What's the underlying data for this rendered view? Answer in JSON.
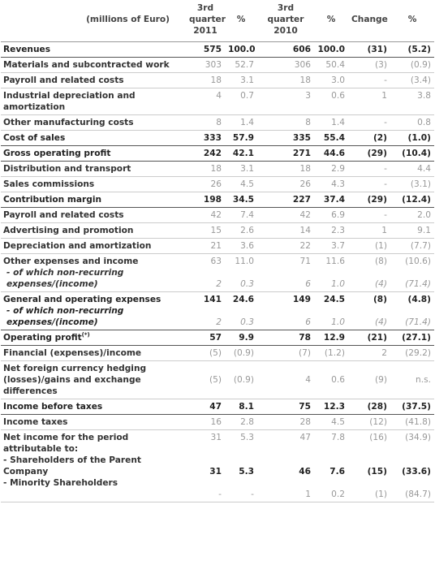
{
  "header": {
    "label": "(millions of Euro)",
    "col1": "3rd quarter 2011",
    "col1_line1": "3rd",
    "col1_line2": "quarter",
    "col1_line3": "2011",
    "col2": "%",
    "col3_line1": "3rd",
    "col3_line2": "quarter",
    "col3_line3": "2010",
    "col4": "%",
    "col5": "Change",
    "col6": "%"
  },
  "rows": [
    {
      "label": "Revenues",
      "v2011": "575",
      "p2011": "100.0",
      "v2010": "606",
      "p2010": "100.0",
      "change": "(31)",
      "change_pct": "(5.2)",
      "bold": true
    },
    {
      "label": "Materials and subcontracted work",
      "v2011": "303",
      "p2011": "52.7",
      "v2010": "306",
      "p2010": "50.4",
      "change": "(3)",
      "change_pct": "(0.9)",
      "bold": false
    },
    {
      "label": "Payroll and related costs",
      "v2011": "18",
      "p2011": "3.1",
      "v2010": "18",
      "p2010": "3.0",
      "change": "-",
      "change_pct": "(3.4)",
      "bold": false
    },
    {
      "label": "Industrial depreciation and amortization",
      "v2011": "4",
      "p2011": "0.7",
      "v2010": "3",
      "p2010": "0.6",
      "change": "1",
      "change_pct": "3.8",
      "bold": false
    },
    {
      "label": "Other manufacturing costs",
      "v2011": "8",
      "p2011": "1.4",
      "v2010": "8",
      "p2010": "1.4",
      "change": "-",
      "change_pct": "0.8",
      "bold": false
    },
    {
      "label": "Cost of sales",
      "v2011": "333",
      "p2011": "57.9",
      "v2010": "335",
      "p2010": "55.4",
      "change": "(2)",
      "change_pct": "(1.0)",
      "bold": true
    },
    {
      "label": "Gross operating profit",
      "v2011": "242",
      "p2011": "42.1",
      "v2010": "271",
      "p2010": "44.6",
      "change": "(29)",
      "change_pct": "(10.4)",
      "bold": true
    },
    {
      "label": "Distribution and transport",
      "v2011": "18",
      "p2011": "3.1",
      "v2010": "18",
      "p2010": "2.9",
      "change": "-",
      "change_pct": "4.4",
      "bold": false
    },
    {
      "label": "Sales commissions",
      "v2011": "26",
      "p2011": "4.5",
      "v2010": "26",
      "p2010": "4.3",
      "change": "-",
      "change_pct": "(3.1)",
      "bold": false
    },
    {
      "label": "Contribution margin",
      "v2011": "198",
      "p2011": "34.5",
      "v2010": "227",
      "p2010": "37.4",
      "change": "(29)",
      "change_pct": "(12.4)",
      "bold": true
    },
    {
      "label": "Payroll and related costs",
      "v2011": "42",
      "p2011": "7.4",
      "v2010": "42",
      "p2010": "6.9",
      "change": "-",
      "change_pct": "2.0",
      "bold": false
    },
    {
      "label": "Advertising and promotion",
      "v2011": "15",
      "p2011": "2.6",
      "v2010": "14",
      "p2010": "2.3",
      "change": "1",
      "change_pct": "9.1",
      "bold": false
    },
    {
      "label": "Depreciation and amortization",
      "v2011": "21",
      "p2011": "3.6",
      "v2010": "22",
      "p2010": "3.7",
      "change": "(1)",
      "change_pct": "(7.7)",
      "bold": false
    }
  ],
  "other_expenses": {
    "label": "Other expenses and income",
    "sub_label": "- of which non-recurring expenses/(income)",
    "v2011": "63",
    "p2011": "11.0",
    "v2010": "71",
    "p2010": "11.6",
    "change": "(8)",
    "change_pct": "(10.6)",
    "sub_v2011": "2",
    "sub_p2011": "0.3",
    "sub_v2010": "6",
    "sub_p2010": "1.0",
    "sub_change": "(4)",
    "sub_change_pct": "(71.4)"
  },
  "general_expenses": {
    "label": "General and operating expenses",
    "sub_label": "- of which non-recurring expenses/(income)",
    "v2011": "141",
    "p2011": "24.6",
    "v2010": "149",
    "p2010": "24.5",
    "change": "(8)",
    "change_pct": "(4.8)",
    "sub_v2011": "2",
    "sub_p2011": "0.3",
    "sub_v2010": "6",
    "sub_p2010": "1.0",
    "sub_change": "(4)",
    "sub_change_pct": "(71.4)"
  },
  "operating_profit": {
    "label": "Operating profit",
    "note": "(*)",
    "v2011": "57",
    "p2011": "9.9",
    "v2010": "78",
    "p2010": "12.9",
    "change": "(21)",
    "change_pct": "(27.1)"
  },
  "financial": {
    "label": "Financial (expenses)/income",
    "v2011": "(5)",
    "p2011": "(0.9)",
    "v2010": "(7)",
    "p2010": "(1.2)",
    "change": "2",
    "change_pct": "(29.2)"
  },
  "fx": {
    "label": "Net foreign currency hedging (losses)/gains and exchange differences",
    "v2011": "(5)",
    "p2011": "(0.9)",
    "v2010": "4",
    "p2010": "0.6",
    "change": "(9)",
    "change_pct": "n.s."
  },
  "income_before_taxes": {
    "label": "Income before taxes",
    "v2011": "47",
    "p2011": "8.1",
    "v2010": "75",
    "p2010": "12.3",
    "change": "(28)",
    "change_pct": "(37.5)"
  },
  "income_taxes": {
    "label": "Income taxes",
    "v2011": "16",
    "p2011": "2.8",
    "v2010": "28",
    "p2010": "4.5",
    "change": "(12)",
    "change_pct": "(41.8)"
  },
  "net_income": {
    "label": "Net income for the period attributable to:",
    "v2011": "31",
    "p2011": "5.3",
    "v2010": "47",
    "p2010": "7.8",
    "change": "(16)",
    "change_pct": "(34.9)",
    "parent_label": "- Shareholders of the Parent Company",
    "parent_v2011": "31",
    "parent_p2011": "5.3",
    "parent_v2010": "46",
    "parent_p2010": "7.6",
    "parent_change": "(15)",
    "parent_change_pct": "(33.6)",
    "minority_label": "- Minority Shareholders",
    "minority_v2011": "-",
    "minority_p2011": "-",
    "minority_v2010": "1",
    "minority_p2010": "0.2",
    "minority_change": "(1)",
    "minority_change_pct": "(84.7)"
  }
}
